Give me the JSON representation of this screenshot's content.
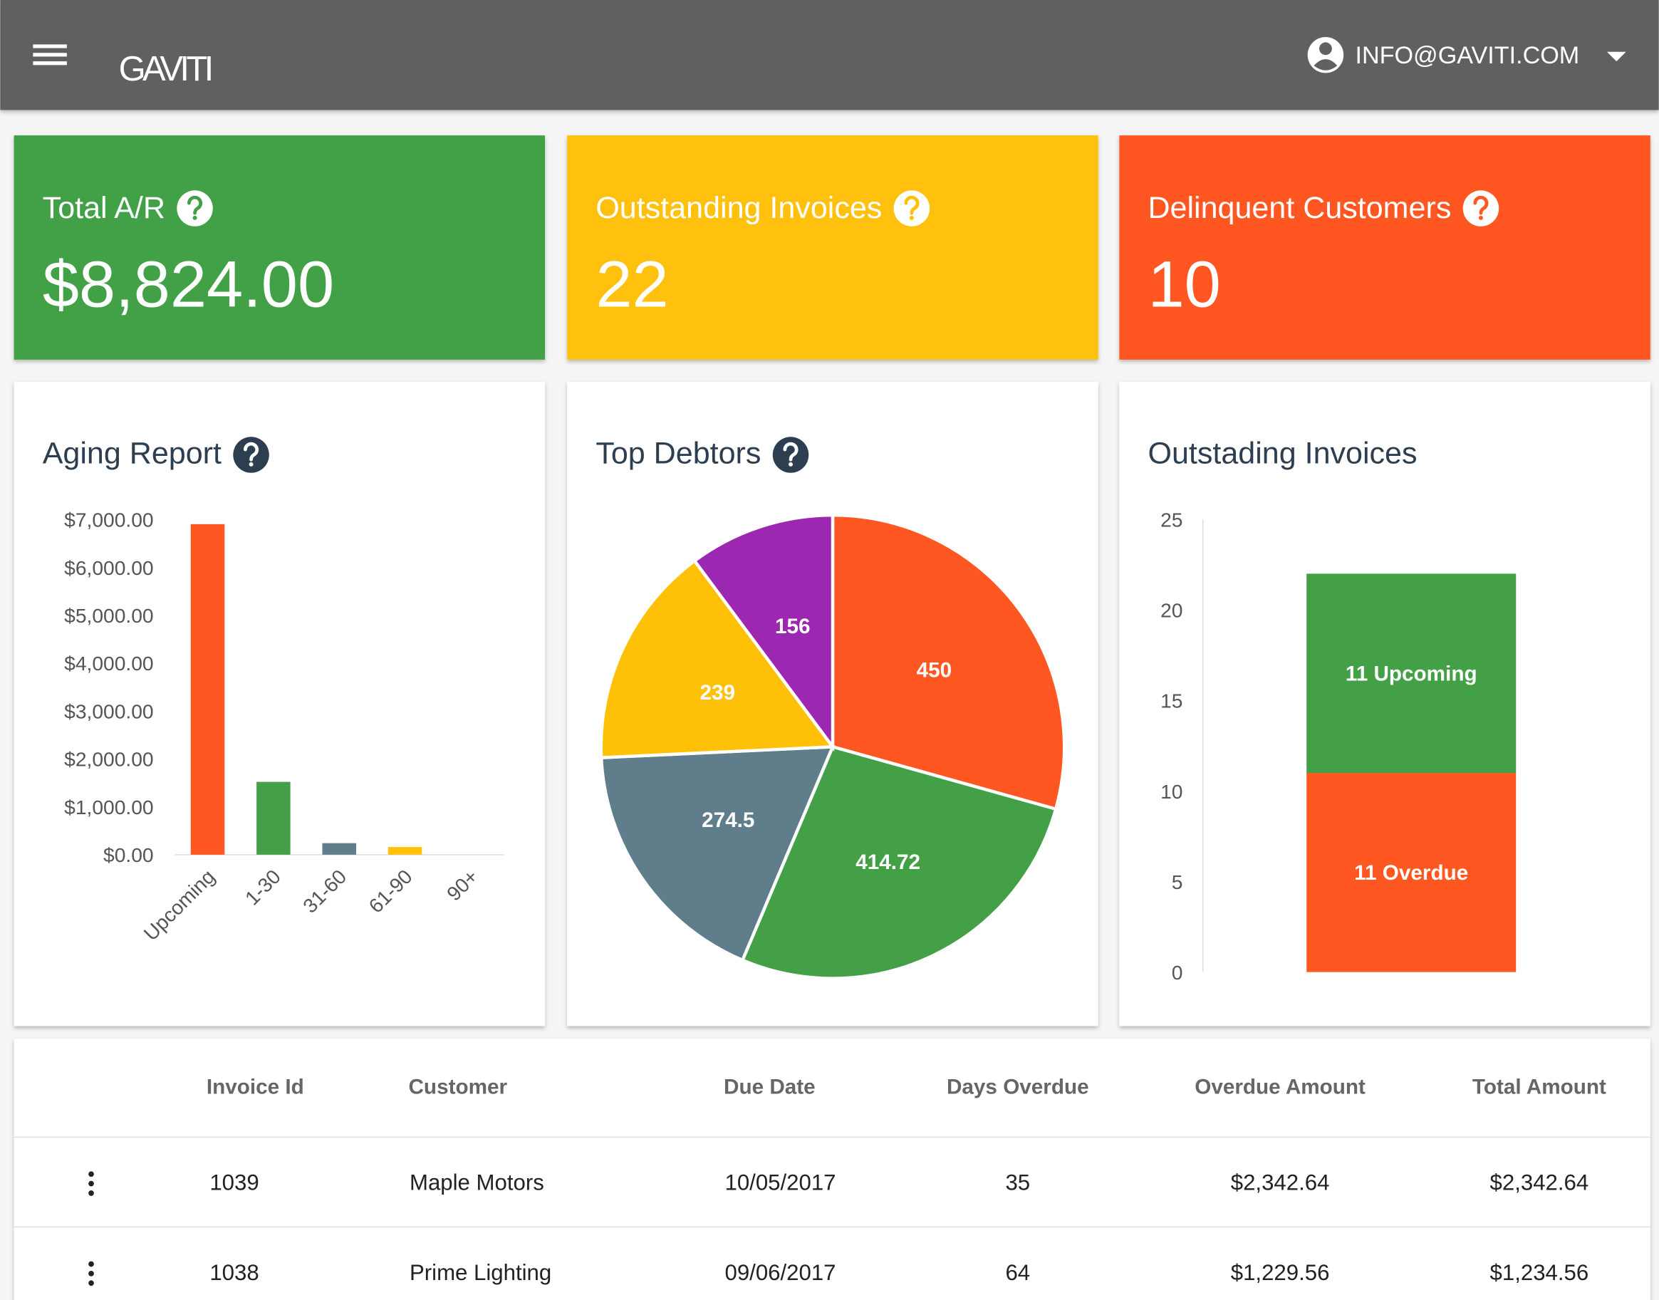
{
  "header": {
    "logo": "GAVITI",
    "user": "INFO@GAVITI.COM"
  },
  "kpis": [
    {
      "title": "Total A/R",
      "value": "$8,824.00",
      "color": "#43a047"
    },
    {
      "title": "Outstanding Invoices",
      "value": "22",
      "color": "#ffc107"
    },
    {
      "title": "Delinquent Customers",
      "value": "10",
      "color": "#ff5722"
    }
  ],
  "chart_data": [
    {
      "type": "bar",
      "title": "Aging Report",
      "help": true,
      "categories": [
        "Upcoming",
        "1-30",
        "31-60",
        "61-90",
        "90+"
      ],
      "values": [
        6900,
        1520,
        240,
        160,
        0
      ],
      "colors": [
        "#ff5722",
        "#43a047",
        "#607d8b",
        "#ffc107",
        "#9c27b0"
      ],
      "ylim": [
        0,
        7000
      ],
      "yticks": [
        {
          "value": 0,
          "label": "$0.00"
        },
        {
          "value": 1000,
          "label": "$1,000.00"
        },
        {
          "value": 2000,
          "label": "$2,000.00"
        },
        {
          "value": 3000,
          "label": "$3,000.00"
        },
        {
          "value": 4000,
          "label": "$4,000.00"
        },
        {
          "value": 5000,
          "label": "$5,000.00"
        },
        {
          "value": 6000,
          "label": "$6,000.00"
        },
        {
          "value": 7000,
          "label": "$7,000.00"
        }
      ]
    },
    {
      "type": "pie",
      "title": "Top Debtors",
      "help": true,
      "values": [
        450,
        414.72,
        274.5,
        239,
        156
      ],
      "colors": [
        "#ff5722",
        "#43a047",
        "#607d8b",
        "#ffc107",
        "#9c27b0"
      ]
    },
    {
      "type": "stacked_bar",
      "title": "Outstading Invoices",
      "help": false,
      "categories": [
        null
      ],
      "series": [
        {
          "color": "#ff5722",
          "values": [
            11
          ],
          "value_labels": [
            "11 Overdue"
          ]
        },
        {
          "color": "#43a047",
          "values": [
            11
          ],
          "value_labels": [
            "11 Upcoming"
          ]
        }
      ],
      "ylim": [
        0,
        25
      ],
      "yticks": [
        0,
        5,
        10,
        15,
        20,
        25
      ]
    }
  ],
  "table": {
    "columns": [
      "Invoice Id",
      "Customer",
      "Due Date",
      "Days Overdue",
      "Overdue Amount",
      "Total Amount"
    ],
    "rows": [
      [
        "1039",
        "Maple Motors",
        "10/05/2017",
        "35",
        "$2,342.64",
        "$2,342.64"
      ],
      [
        "1038",
        "Prime Lighting",
        "09/06/2017",
        "64",
        "$1,229.56",
        "$1,234.56"
      ]
    ]
  }
}
